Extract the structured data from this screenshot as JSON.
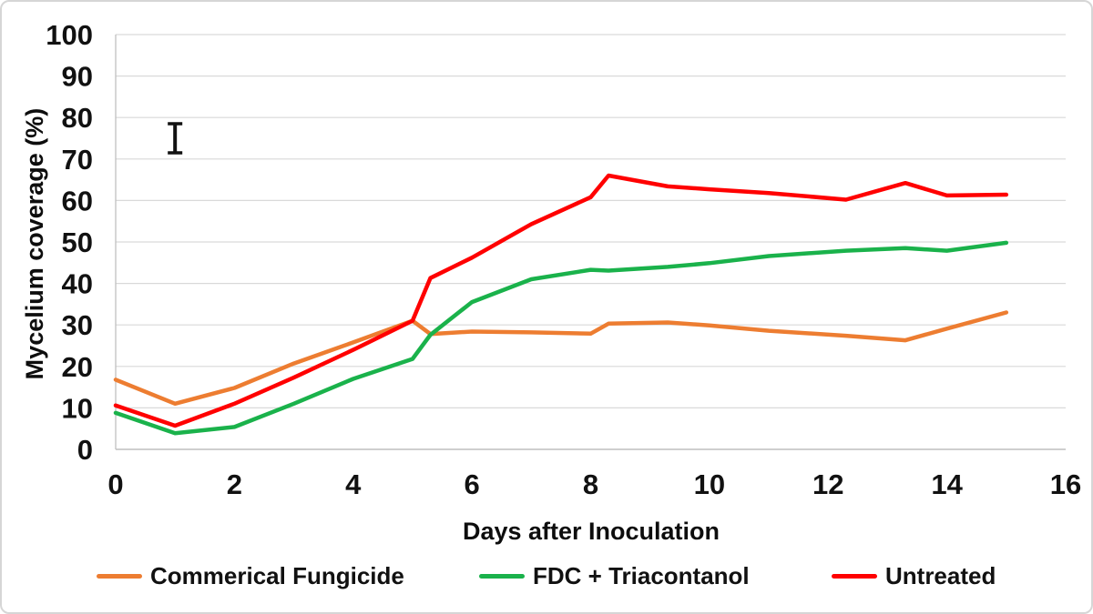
{
  "chart_data": {
    "type": "line",
    "title": "",
    "xlabel": "Days after Inoculation",
    "ylabel": "Mycelium coverage (%)",
    "xlim": [
      0,
      16
    ],
    "ylim": [
      0,
      100
    ],
    "x_ticks": [
      0,
      2,
      4,
      6,
      8,
      10,
      12,
      14,
      16
    ],
    "y_ticks": [
      0,
      10,
      20,
      30,
      40,
      50,
      60,
      70,
      80,
      90,
      100
    ],
    "grid": "horizontal",
    "legend_position": "bottom",
    "x": [
      0,
      1,
      2,
      3,
      4,
      5,
      5.3,
      6,
      7,
      8,
      8.3,
      9.3,
      10,
      11,
      12.3,
      13.3,
      14,
      15
    ],
    "series": [
      {
        "name": "Commerical Fungicide",
        "color": "#ED7D31",
        "values": [
          16.8,
          11.0,
          14.8,
          20.7,
          25.8,
          31.0,
          27.8,
          28.4,
          28.2,
          27.9,
          30.3,
          30.6,
          29.9,
          28.6,
          27.4,
          26.3,
          29.1,
          33.0
        ]
      },
      {
        "name": "FDC + Triacontanol",
        "color": "#1AB24B",
        "values": [
          8.8,
          3.9,
          5.4,
          11.0,
          17.0,
          21.8,
          27.6,
          35.5,
          41.0,
          43.3,
          43.1,
          44.0,
          44.9,
          46.6,
          47.9,
          48.5,
          47.9,
          49.8
        ]
      },
      {
        "name": "Untreated",
        "color": "#FF0000",
        "values": [
          10.6,
          5.7,
          11.0,
          17.3,
          24.0,
          31.0,
          41.3,
          46.2,
          54.3,
          60.8,
          66.0,
          63.4,
          62.7,
          61.8,
          60.2,
          64.2,
          61.2,
          61.4
        ]
      }
    ],
    "error_bar": {
      "x": 1,
      "y_bottom": 71.5,
      "y_top": 78.5,
      "color": "#111111"
    }
  },
  "colors": {
    "gridline": "#D9D9D9",
    "axis_line": "#BFBFBF",
    "tick_label": "#111111"
  }
}
